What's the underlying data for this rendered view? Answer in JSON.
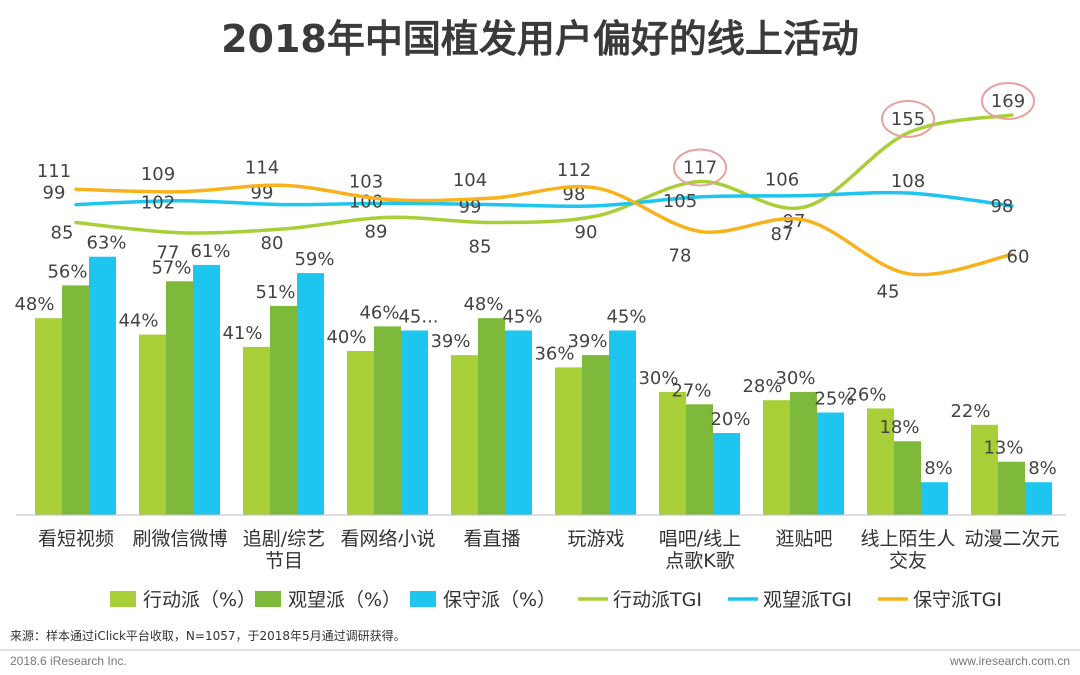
{
  "colors": {
    "action": "#a8cf38",
    "watch": "#7dba3b",
    "conservative": "#1ec5ee",
    "action_tgi": "#a8cf38",
    "watch_tgi": "#1ec5ee",
    "conservative_tgi": "#f7b21c",
    "highlight": "#e8a0a0"
  },
  "chart_data": {
    "type": "bar",
    "title": "2018年中国植发用户偏好的线上活动",
    "categories": [
      [
        "看短视频"
      ],
      [
        "刷微信微博"
      ],
      [
        "追剧/综艺",
        "节目"
      ],
      [
        "看网络小说"
      ],
      [
        "看直播"
      ],
      [
        "玩游戏"
      ],
      [
        "唱吧/线上",
        "点歌K歌"
      ],
      [
        "逛贴吧"
      ],
      [
        "线上陌生人",
        "交友"
      ],
      [
        "动漫二次元"
      ]
    ],
    "series": [
      {
        "name": "行动派（%）",
        "kind": "bar",
        "values": [
          48,
          44,
          41,
          40,
          39,
          36,
          30,
          28,
          26,
          22
        ],
        "labels": [
          "48%",
          "44%",
          "41%",
          "40%",
          "39%",
          "36%",
          "30%",
          "28%",
          "26%",
          "22%"
        ]
      },
      {
        "name": "观望派（%）",
        "kind": "bar",
        "values": [
          56,
          57,
          51,
          46,
          48,
          39,
          27,
          30,
          18,
          13
        ],
        "labels": [
          "56%",
          "57%",
          "51%",
          "46%",
          "48%",
          "39%",
          "27%",
          "30%",
          "18%",
          "13%"
        ]
      },
      {
        "name": "保守派（%）",
        "kind": "bar",
        "values": [
          63,
          61,
          59,
          45,
          45,
          45,
          20,
          25,
          8,
          8
        ],
        "labels": [
          "63%",
          "61%",
          "59%",
          "45...",
          "45%",
          "45%",
          "20%",
          "25%",
          "8%",
          "8%"
        ]
      },
      {
        "name": "行动派TGI",
        "kind": "line",
        "values": [
          85,
          77,
          80,
          89,
          85,
          90,
          117,
          97,
          155,
          169
        ],
        "labels": [
          "85",
          "77",
          "80",
          "89",
          "85",
          "90",
          "117",
          "97",
          "155",
          "169"
        ]
      },
      {
        "name": "观望派TGI",
        "kind": "line",
        "values": [
          99,
          102,
          99,
          100,
          99,
          98,
          105,
          106,
          108,
          98
        ],
        "labels": [
          "99",
          "102",
          "99",
          "100",
          "99",
          "98",
          "105",
          "106",
          "108",
          "98"
        ]
      },
      {
        "name": "保守派TGI",
        "kind": "line",
        "values": [
          111,
          109,
          114,
          103,
          104,
          112,
          78,
          87,
          45,
          60
        ],
        "labels": [
          "111",
          "109",
          "114",
          "103",
          "104",
          "112",
          "78",
          "87",
          "45",
          "60"
        ]
      }
    ],
    "highlighted_points": [
      {
        "series": "行动派TGI",
        "category_index": 6
      },
      {
        "series": "行动派TGI",
        "category_index": 8
      },
      {
        "series": "行动派TGI",
        "category_index": 9
      }
    ],
    "legend_position": "bottom",
    "grid": false
  },
  "source_text": "来源：样本通过iClick平台收取，N=1057，于2018年5月通过调研获得。",
  "footer_left": "2018.6 iResearch Inc.",
  "footer_right": "www.iresearch.com.cn"
}
